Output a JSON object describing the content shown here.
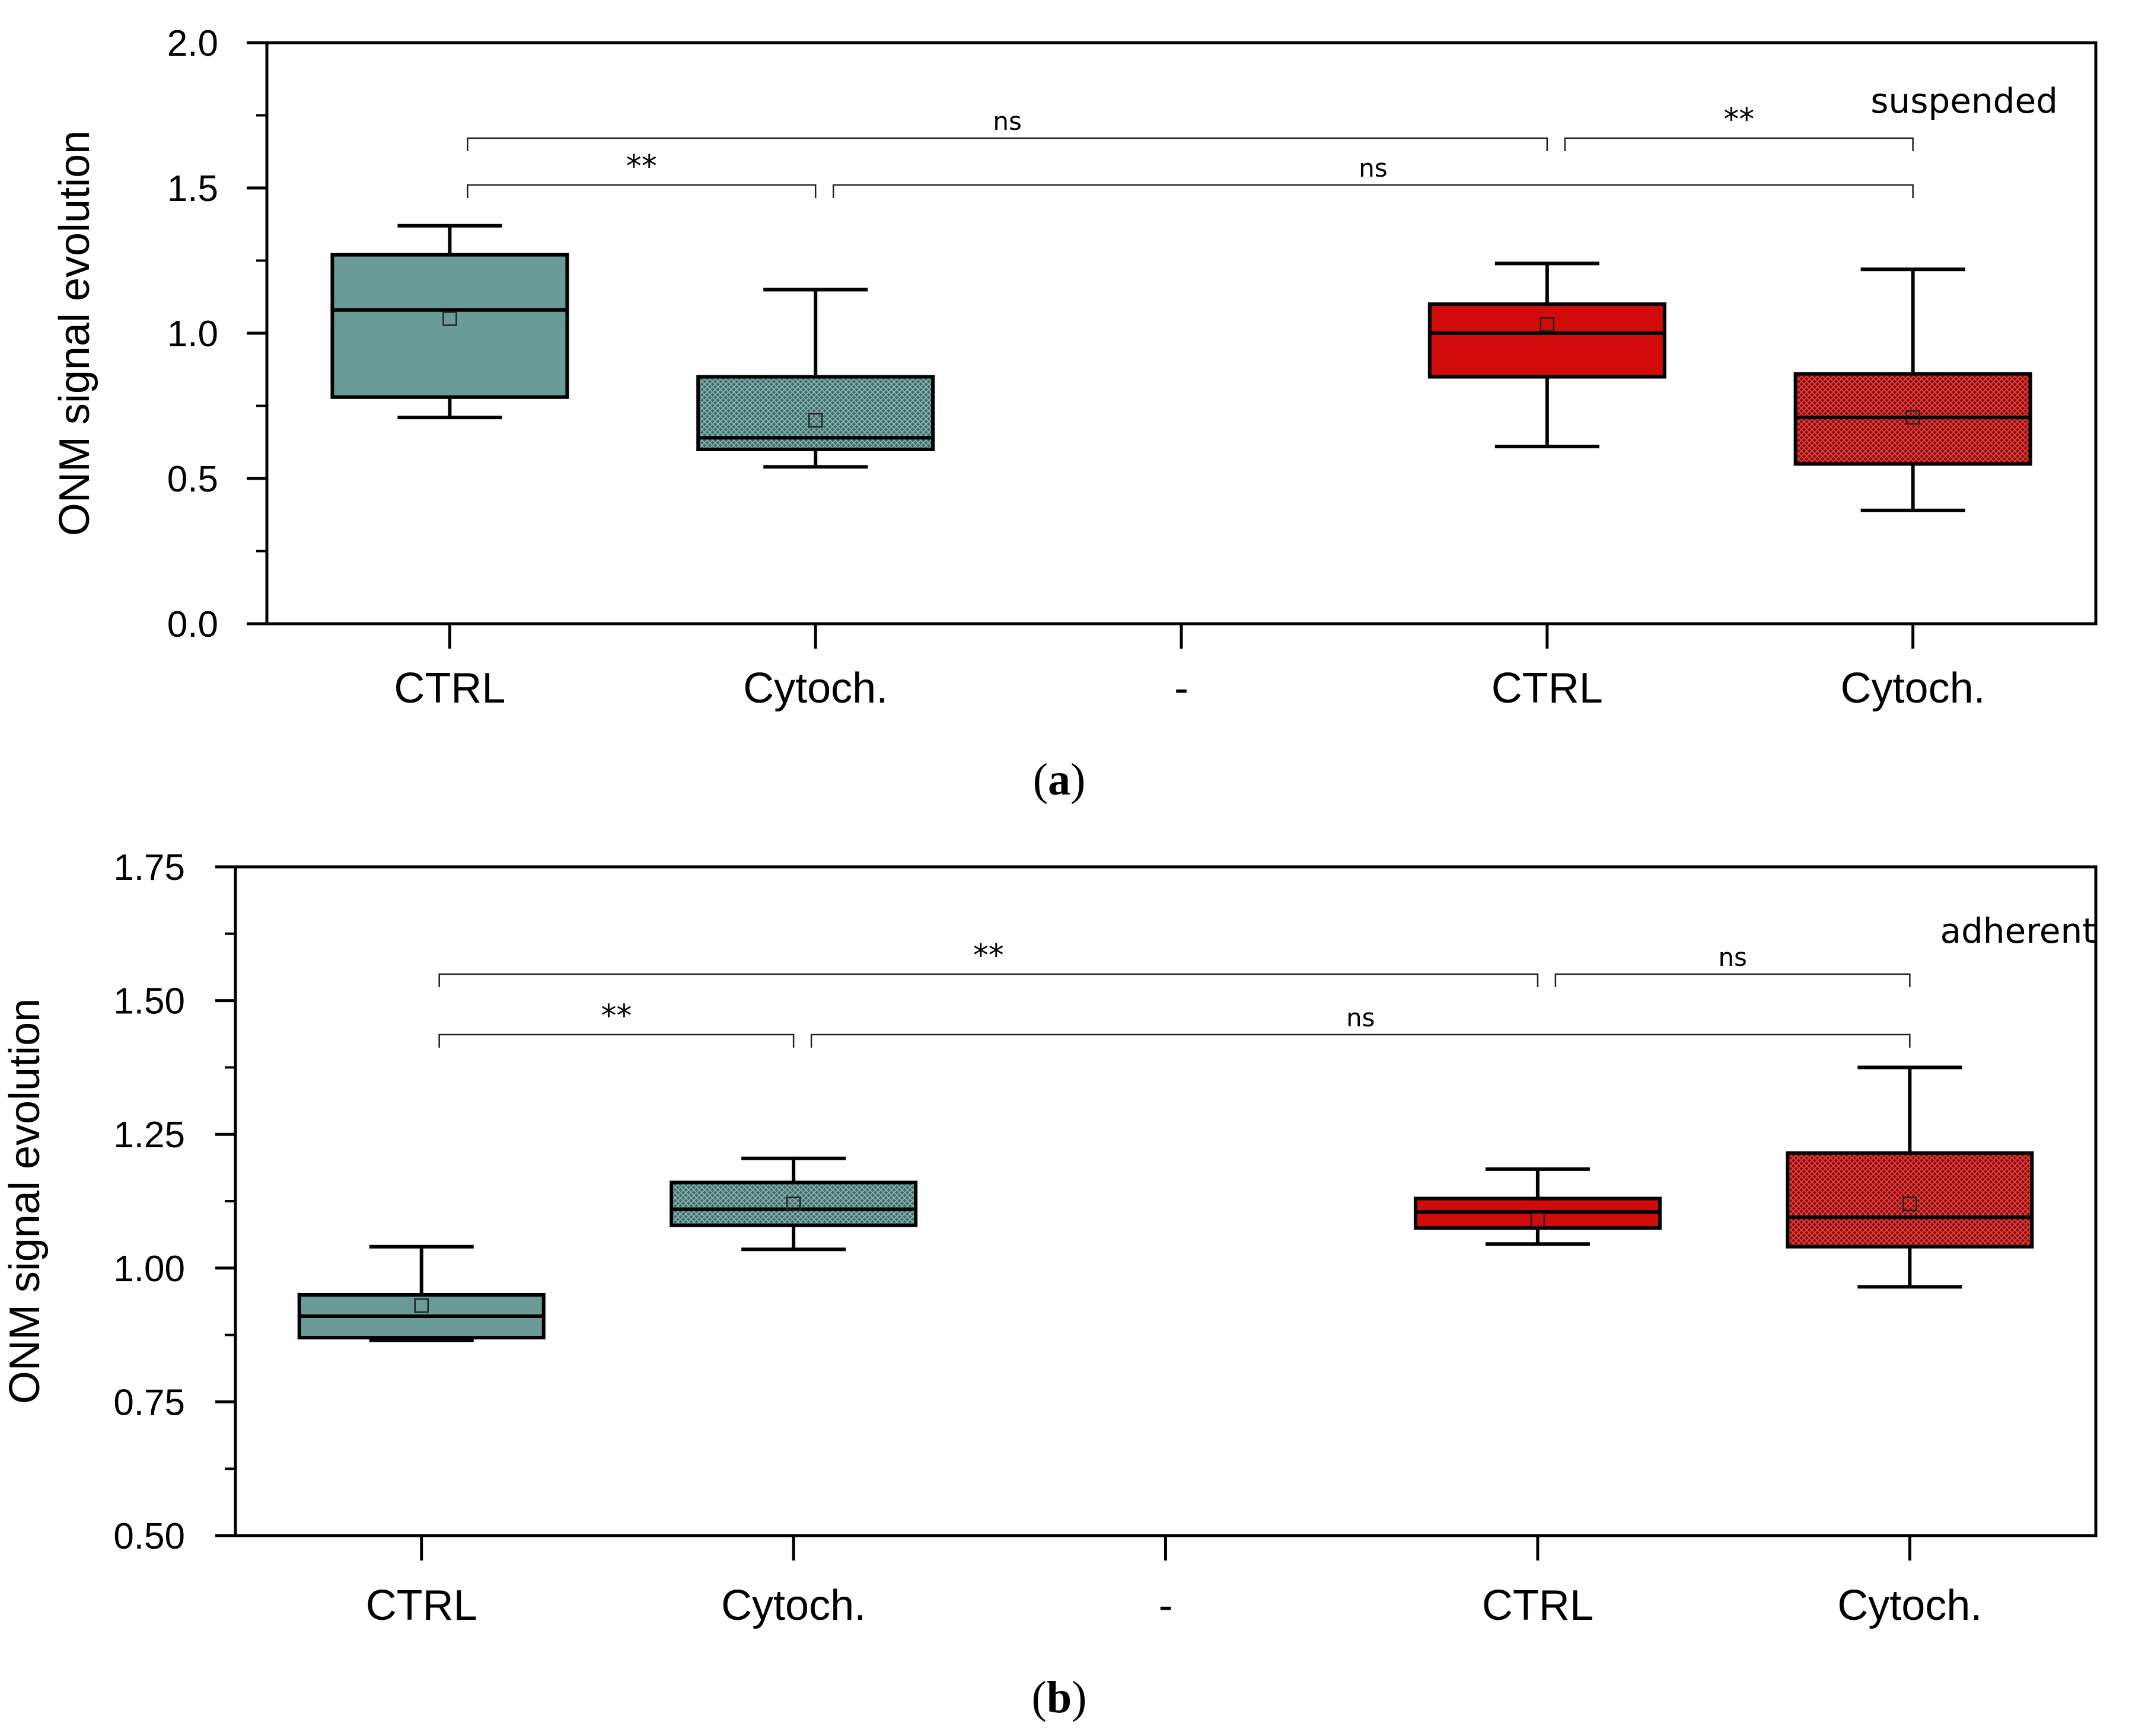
{
  "colors": {
    "ctrl_a": "#6b9b99",
    "cyto_a": "#3e6e6c",
    "ctrl_b": "#d10a0a",
    "cyto_b": "#9a0a0a",
    "axis": "#000000"
  },
  "panel_labels": {
    "a": "a",
    "b": "b"
  },
  "chart_data": [
    {
      "type": "box",
      "ylabel": "ONM signal evolution",
      "ylim": [
        0,
        2.0
      ],
      "yticks": [
        0,
        0.5,
        1.0,
        1.5,
        2.0
      ],
      "ytick_labels": [
        "0.0",
        "0.5",
        "1.0",
        "1.5",
        "2.0"
      ],
      "categories": [
        "CTRL",
        "Cytoch.",
        "-",
        "CTRL",
        "Cytoch."
      ],
      "annotation": "suspended",
      "boxes": [
        {
          "pos": 1,
          "min": 0.71,
          "q1": 0.78,
          "median": 1.08,
          "q3": 1.27,
          "max": 1.37,
          "mean": 1.05,
          "color": "#6b9b99",
          "pattern": "none"
        },
        {
          "pos": 2,
          "min": 0.54,
          "q1": 0.6,
          "median": 0.64,
          "q3": 0.85,
          "max": 1.15,
          "mean": 0.7,
          "color": "#3e6e6c",
          "pattern": "mesh"
        },
        {
          "pos": 4,
          "min": 0.61,
          "q1": 0.85,
          "median": 1.0,
          "q3": 1.1,
          "max": 1.24,
          "mean": 1.03,
          "color": "#d10a0a",
          "pattern": "none"
        },
        {
          "pos": 5,
          "min": 0.39,
          "q1": 0.55,
          "median": 0.71,
          "q3": 0.86,
          "max": 1.22,
          "mean": 0.71,
          "color": "#9a0a0a",
          "pattern": "mesh"
        }
      ],
      "significance": [
        {
          "from": 1,
          "to": 2,
          "label": "**",
          "level": 1
        },
        {
          "from": 2,
          "to": 5,
          "label": "ns",
          "level": 1
        },
        {
          "from": 1,
          "to": 4,
          "label": "ns",
          "level": 2
        },
        {
          "from": 4,
          "to": 5,
          "label": "**",
          "level": 2
        }
      ]
    },
    {
      "type": "box",
      "ylabel": "ONM signal evolution",
      "ylim": [
        0.5,
        1.75
      ],
      "yticks": [
        0.5,
        0.75,
        1.0,
        1.25,
        1.5,
        1.75
      ],
      "ytick_labels": [
        "0.50",
        "0.75",
        "1.00",
        "1.25",
        "1.50",
        "1.75"
      ],
      "categories": [
        "CTRL",
        "Cytoch.",
        "-",
        "CTRL",
        "Cytoch."
      ],
      "annotation": "adherent",
      "boxes": [
        {
          "pos": 1,
          "min": 0.865,
          "q1": 0.87,
          "median": 0.91,
          "q3": 0.95,
          "max": 1.04,
          "mean": 0.93,
          "color": "#6b9b99",
          "pattern": "none"
        },
        {
          "pos": 2,
          "min": 1.035,
          "q1": 1.08,
          "median": 1.11,
          "q3": 1.16,
          "max": 1.205,
          "mean": 1.12,
          "color": "#3e6e6c",
          "pattern": "mesh"
        },
        {
          "pos": 4,
          "min": 1.045,
          "q1": 1.075,
          "median": 1.105,
          "q3": 1.13,
          "max": 1.185,
          "mean": 1.09,
          "color": "#d10a0a",
          "pattern": "none"
        },
        {
          "pos": 5,
          "min": 0.965,
          "q1": 1.04,
          "median": 1.095,
          "q3": 1.215,
          "max": 1.375,
          "mean": 1.12,
          "color": "#9a0a0a",
          "pattern": "mesh"
        }
      ],
      "significance": [
        {
          "from": 1,
          "to": 2,
          "label": "**",
          "level": 1
        },
        {
          "from": 2,
          "to": 5,
          "label": "ns",
          "level": 1
        },
        {
          "from": 1,
          "to": 4,
          "label": "**",
          "level": 2
        },
        {
          "from": 4,
          "to": 5,
          "label": "ns",
          "level": 2
        }
      ]
    }
  ]
}
